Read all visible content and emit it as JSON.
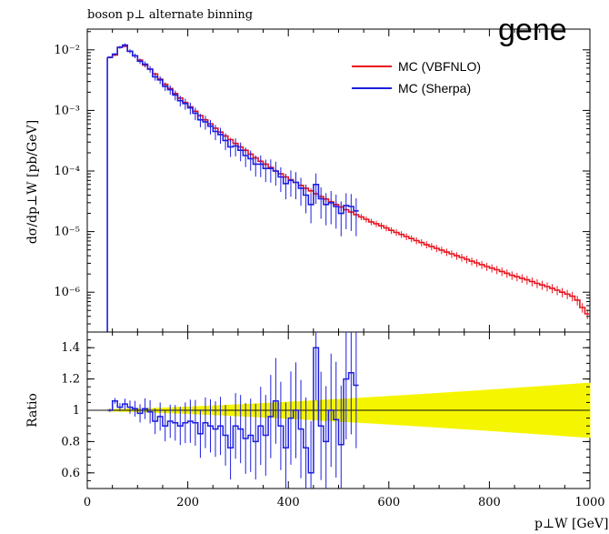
{
  "header": {
    "title": "boson p⊥ alternate binning",
    "watermark": "gene"
  },
  "colors": {
    "vbfnlo": "#e8141e",
    "sherpa": "#1d1ee0",
    "band": "#f5f500",
    "ratio_line": "#111111"
  },
  "chart_data": [
    {
      "type": "line",
      "title": "boson p⊥ alternate binning",
      "xlabel": "",
      "ylabel": "dσ/dp⊥W [pb/GeV]",
      "log_y": true,
      "xlim": [
        0,
        1000
      ],
      "ylim": [
        2.2e-07,
        0.022
      ],
      "y_tick_labels": [
        "10⁻²",
        "10⁻³",
        "10⁻⁴",
        "10⁻⁵",
        "10⁻⁶"
      ],
      "legend": {
        "placement": "top-right",
        "entries": [
          "MC (VBFNLO)",
          "MC (Sherpa)"
        ]
      },
      "series": [
        {
          "name": "MC (VBFNLO)",
          "step_edges": [
            40,
            50,
            60,
            70,
            80,
            90,
            100,
            110,
            120,
            130,
            140,
            150,
            160,
            170,
            180,
            190,
            200,
            210,
            220,
            230,
            240,
            250,
            260,
            270,
            280,
            290,
            300,
            310,
            320,
            330,
            340,
            350,
            360,
            370,
            380,
            390,
            400,
            410,
            420,
            430,
            440,
            450,
            460,
            470,
            480,
            490,
            500,
            510,
            520,
            530,
            540,
            550,
            560,
            570,
            580,
            590,
            600,
            610,
            620,
            630,
            640,
            650,
            660,
            670,
            680,
            690,
            700,
            710,
            720,
            730,
            740,
            750,
            760,
            770,
            780,
            790,
            800,
            810,
            820,
            830,
            840,
            850,
            860,
            870,
            880,
            890,
            900,
            910,
            920,
            930,
            940,
            950,
            960,
            970,
            980,
            990,
            1000
          ],
          "values": [
            0.0075,
            0.0082,
            0.011,
            0.0115,
            0.0095,
            0.008,
            0.0068,
            0.0056,
            0.0048,
            0.004,
            0.0033,
            0.0027,
            0.0023,
            0.0019,
            0.0016,
            0.00135,
            0.00115,
            0.00097,
            0.00082,
            0.0007,
            0.0006,
            0.00051,
            0.00044,
            0.00038,
            0.00033,
            0.000285,
            0.00025,
            0.00022,
            0.00019,
            0.000165,
            0.000145,
            0.00013,
            0.000115,
            0.0001,
            9e-05,
            8e-05,
            7.2e-05,
            6.5e-05,
            5.8e-05,
            5.2e-05,
            4.7e-05,
            4.2e-05,
            3.8e-05,
            3.45e-05,
            3.1e-05,
            2.8e-05,
            2.55e-05,
            2.3e-05,
            2.1e-05,
            1.9e-05,
            1.75e-05,
            1.6e-05,
            1.45e-05,
            1.35e-05,
            1.25e-05,
            1.15e-05,
            1.05e-05,
            9.7e-06,
            9e-06,
            8.3e-06,
            7.7e-06,
            7.1e-06,
            6.6e-06,
            6.1e-06,
            5.7e-06,
            5.3e-06,
            4.95e-06,
            4.6e-06,
            4.3e-06,
            4e-06,
            3.75e-06,
            3.5e-06,
            3.25e-06,
            3.05e-06,
            2.85e-06,
            2.65e-06,
            2.5e-06,
            2.35e-06,
            2.2e-06,
            2.05e-06,
            1.9e-06,
            1.8e-06,
            1.7e-06,
            1.6e-06,
            1.5e-06,
            1.4e-06,
            1.32e-06,
            1.24e-06,
            1.16e-06,
            1.08e-06,
            1e-06,
            9.3e-07,
            8.6e-07,
            7.4e-07,
            5.6e-07,
            4.4e-07
          ]
        },
        {
          "name": "MC (Sherpa)",
          "step_edges": [
            40,
            50,
            60,
            70,
            80,
            90,
            100,
            110,
            120,
            130,
            140,
            150,
            160,
            170,
            180,
            190,
            200,
            210,
            220,
            230,
            240,
            250,
            260,
            270,
            280,
            290,
            300,
            310,
            320,
            330,
            340,
            350,
            360,
            370,
            380,
            390,
            400,
            410,
            420,
            430,
            440,
            450,
            460,
            470,
            480,
            490,
            500,
            510,
            520,
            530,
            540,
            550,
            560,
            570,
            580,
            590,
            600,
            610,
            620,
            630,
            640,
            650,
            660,
            670,
            680,
            690,
            700,
            710,
            720,
            730,
            740,
            750,
            760,
            770,
            780,
            790,
            800,
            810,
            820,
            830,
            840,
            850,
            860,
            870,
            880,
            890,
            900,
            910,
            920,
            930,
            940,
            950,
            960,
            970,
            980,
            990,
            1000
          ],
          "values": [
            0.0075,
            0.0085,
            0.011,
            0.012,
            0.0095,
            0.008,
            0.0065,
            0.0058,
            0.0048,
            0.0036,
            0.0032,
            0.0025,
            0.0022,
            0.0018,
            0.00145,
            0.0013,
            0.0011,
            0.0009,
            0.0007,
            0.00065,
            0.00055,
            0.00045,
            0.0004,
            0.00032,
            0.00025,
            0.00026,
            0.00022,
            0.00018,
            0.00016,
            0.00013,
            0.00013,
            0.00011,
            0.00011,
            0.0001,
            8e-05,
            6.2e-05,
            7e-05,
            6.5e-05,
            5.2e-05,
            4e-05,
            2.8e-05,
            6e-05,
            3.5e-05,
            2.8e-05,
            3e-05,
            2.6e-05,
            2e-05,
            2.7e-05,
            2.6e-05,
            2.2e-05,
            null,
            null,
            null,
            null,
            null,
            null,
            null,
            null,
            null,
            null,
            null,
            null,
            null,
            null,
            null,
            null,
            null,
            null,
            null,
            null,
            null,
            null,
            null,
            null,
            null,
            null,
            null,
            null,
            null,
            null,
            null,
            null,
            null,
            null,
            null,
            null,
            null,
            null,
            null,
            null,
            null,
            null,
            null,
            null,
            null,
            null
          ]
        }
      ]
    },
    {
      "type": "line",
      "xlabel": "p⊥W [GeV]",
      "ylabel": "Ratio",
      "xlim": [
        0,
        1000
      ],
      "ylim": [
        0.5,
        1.5
      ],
      "x_tick_labels": [
        "0",
        "200",
        "400",
        "600",
        "800",
        "1000"
      ],
      "y_tick_labels": [
        "0.6",
        "0.8",
        "1",
        "1.2",
        "1.4"
      ],
      "reference": 1.0,
      "series": [
        {
          "name": "MC (Sherpa)",
          "step_edges": [
            40,
            50,
            60,
            70,
            80,
            90,
            100,
            110,
            120,
            130,
            140,
            150,
            160,
            170,
            180,
            190,
            200,
            210,
            220,
            230,
            240,
            250,
            260,
            270,
            280,
            290,
            300,
            310,
            320,
            330,
            340,
            350,
            360,
            370,
            380,
            390,
            400,
            410,
            420,
            430,
            440,
            450,
            460,
            470,
            480,
            490,
            500,
            510,
            520,
            530,
            540,
            550,
            560,
            570,
            580,
            590,
            600,
            610,
            620,
            630,
            640,
            650,
            660,
            670,
            680,
            690,
            700,
            710,
            720,
            730,
            740,
            750,
            760,
            770,
            780,
            790,
            800,
            810,
            820,
            830,
            840,
            850,
            860,
            870,
            880,
            890,
            900,
            910,
            920,
            930,
            940,
            950,
            960,
            970,
            980,
            990,
            1000
          ],
          "values": [
            1.0,
            1.06,
            1.02,
            1.04,
            1.02,
            1.01,
            0.98,
            1.01,
            0.99,
            0.93,
            0.96,
            0.9,
            0.93,
            0.92,
            0.9,
            0.92,
            0.93,
            0.92,
            0.85,
            0.92,
            0.9,
            0.88,
            0.9,
            0.84,
            0.76,
            0.9,
            0.88,
            0.82,
            0.84,
            0.8,
            0.9,
            0.84,
            0.96,
            1.06,
            0.9,
            0.76,
            0.95,
            1.0,
            0.88,
            0.76,
            0.6,
            1.4,
            0.9,
            0.8,
            1.0,
            0.94,
            0.78,
            1.2,
            1.24,
            1.16,
            null,
            null,
            null,
            null,
            null,
            null,
            null,
            null,
            null,
            null,
            null,
            null,
            null,
            null,
            null,
            null,
            null,
            null,
            null,
            null,
            null,
            null,
            null,
            null,
            null,
            null,
            null,
            null,
            null,
            null,
            null,
            null,
            null,
            null,
            null,
            null,
            null,
            null,
            null,
            null,
            null,
            null,
            null,
            null,
            null,
            null
          ]
        }
      ]
    }
  ]
}
